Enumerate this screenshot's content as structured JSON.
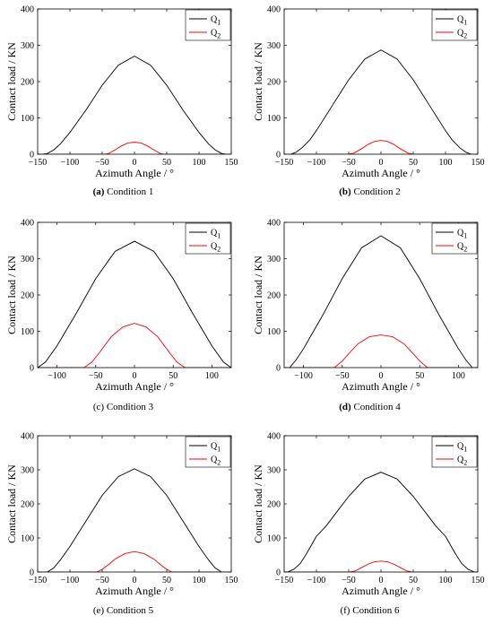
{
  "chart_data": [
    {
      "type": "line",
      "panel_letter": "(a)",
      "caption": "Condition 1",
      "xlabel": "Azimuth Angle / °",
      "ylabel": "Contact load / KN",
      "xlim": [
        -150,
        150
      ],
      "ylim": [
        0,
        400
      ],
      "xticks": [
        -150,
        -100,
        -50,
        0,
        50,
        100,
        150
      ],
      "yticks": [
        0,
        100,
        200,
        300,
        400
      ],
      "legend_position": "top-right",
      "series": [
        {
          "name": "Q1",
          "color": "#000000",
          "x": [
            -142,
            -135,
            -125,
            -115,
            -100,
            -75,
            -50,
            -25,
            0,
            25,
            50,
            75,
            100,
            115,
            125,
            135,
            142
          ],
          "y": [
            0,
            2,
            12,
            28,
            60,
            122,
            190,
            245,
            270,
            245,
            190,
            122,
            60,
            28,
            12,
            2,
            0
          ]
        },
        {
          "name": "Q2",
          "color": "#ff0000",
          "x": [
            -150,
            -45,
            -40,
            -30,
            -20,
            -10,
            0,
            10,
            20,
            30,
            40,
            45,
            150
          ],
          "y": [
            0,
            0,
            2,
            12,
            23,
            31,
            33,
            31,
            23,
            12,
            2,
            0,
            0
          ]
        }
      ]
    },
    {
      "type": "line",
      "panel_letter": "(b)",
      "caption": "Condition 2",
      "xlabel": "Azimuth Angle / °",
      "ylabel": "Contact load / KN",
      "xlim": [
        -150,
        150
      ],
      "ylim": [
        0,
        400
      ],
      "xticks": [
        -150,
        -100,
        -50,
        0,
        50,
        100,
        150
      ],
      "yticks": [
        0,
        100,
        200,
        300,
        400
      ],
      "legend_position": "top-right",
      "series": [
        {
          "name": "Q1",
          "color": "#000000",
          "x": [
            -140,
            -132,
            -122,
            -110,
            -100,
            -75,
            -50,
            -25,
            0,
            25,
            50,
            75,
            100,
            110,
            122,
            132,
            140
          ],
          "y": [
            0,
            5,
            18,
            40,
            65,
            135,
            205,
            262,
            287,
            262,
            205,
            135,
            65,
            40,
            18,
            5,
            0
          ]
        },
        {
          "name": "Q2",
          "color": "#ff0000",
          "x": [
            -150,
            -50,
            -42,
            -30,
            -20,
            -10,
            0,
            10,
            20,
            30,
            42,
            50,
            150
          ],
          "y": [
            0,
            0,
            3,
            15,
            27,
            35,
            38,
            35,
            27,
            15,
            3,
            0,
            0
          ]
        }
      ]
    },
    {
      "type": "line",
      "panel_letter": "(c)",
      "caption": "Condition 3",
      "xlabel": "Azimuth Angle / °",
      "ylabel": "Contact load / KN",
      "xlim": [
        -125,
        125
      ],
      "ylim": [
        0,
        400
      ],
      "xticks": [
        -100,
        -50,
        0,
        50,
        100
      ],
      "yticks": [
        0,
        100,
        200,
        300,
        400
      ],
      "legend_position": "top-right",
      "series": [
        {
          "name": "Q1",
          "color": "#000000",
          "x": [
            -125,
            -115,
            -100,
            -75,
            -50,
            -25,
            0,
            25,
            50,
            75,
            100,
            115,
            125
          ],
          "y": [
            0,
            15,
            60,
            150,
            245,
            320,
            348,
            320,
            245,
            150,
            60,
            15,
            0
          ]
        },
        {
          "name": "Q2",
          "color": "#ff0000",
          "x": [
            -125,
            -65,
            -55,
            -45,
            -30,
            -15,
            0,
            15,
            30,
            45,
            55,
            65,
            125
          ],
          "y": [
            0,
            0,
            15,
            42,
            85,
            112,
            122,
            112,
            85,
            42,
            15,
            0,
            0
          ]
        }
      ]
    },
    {
      "type": "line",
      "panel_letter": "(d)",
      "caption": "Condition 4",
      "xlabel": "Azimuth Angle / °",
      "ylabel": "Contact load / KN",
      "xlim": [
        -125,
        125
      ],
      "ylim": [
        0,
        400
      ],
      "xticks": [
        -100,
        -50,
        0,
        50,
        100
      ],
      "yticks": [
        0,
        100,
        200,
        300,
        400
      ],
      "legend_position": "top-right",
      "series": [
        {
          "name": "Q1",
          "color": "#000000",
          "x": [
            -118,
            -110,
            -100,
            -75,
            -50,
            -25,
            0,
            25,
            50,
            75,
            100,
            110,
            118
          ],
          "y": [
            0,
            20,
            52,
            145,
            245,
            330,
            363,
            330,
            245,
            145,
            52,
            20,
            0
          ]
        },
        {
          "name": "Q2",
          "color": "#ff0000",
          "x": [
            -125,
            -60,
            -50,
            -40,
            -30,
            -15,
            0,
            15,
            30,
            40,
            50,
            60,
            125
          ],
          "y": [
            0,
            0,
            18,
            42,
            65,
            85,
            90,
            85,
            65,
            42,
            18,
            0,
            0
          ]
        }
      ]
    },
    {
      "type": "line",
      "panel_letter": "(e)",
      "caption": "Condition 5",
      "xlabel": "Azimuth Angle / °",
      "ylabel": "Contact load / KN",
      "xlim": [
        -150,
        150
      ],
      "ylim": [
        0,
        400
      ],
      "xticks": [
        -150,
        -100,
        -50,
        0,
        50,
        100,
        150
      ],
      "yticks": [
        0,
        100,
        200,
        300,
        400
      ],
      "legend_position": "top-right",
      "series": [
        {
          "name": "Q1",
          "color": "#000000",
          "x": [
            -135,
            -125,
            -115,
            -100,
            -75,
            -50,
            -25,
            0,
            25,
            50,
            75,
            100,
            115,
            125,
            135
          ],
          "y": [
            0,
            12,
            35,
            75,
            150,
            225,
            280,
            303,
            280,
            225,
            150,
            75,
            35,
            12,
            0
          ]
        },
        {
          "name": "Q2",
          "color": "#ff0000",
          "x": [
            -150,
            -58,
            -50,
            -40,
            -30,
            -15,
            0,
            15,
            30,
            40,
            50,
            58,
            150
          ],
          "y": [
            0,
            0,
            8,
            22,
            38,
            54,
            60,
            54,
            38,
            22,
            8,
            0,
            0
          ]
        }
      ]
    },
    {
      "type": "line",
      "panel_letter": "(f)",
      "caption": "Condition 6",
      "xlabel": "Azimuth Angle / °",
      "ylabel": "Contact load / KN",
      "xlim": [
        -150,
        150
      ],
      "ylim": [
        0,
        400
      ],
      "xticks": [
        -150,
        -100,
        -50,
        0,
        50,
        100,
        150
      ],
      "yticks": [
        0,
        100,
        200,
        300,
        400
      ],
      "legend_position": "top-right",
      "series": [
        {
          "name": "Q1",
          "color": "#000000",
          "x": [
            -145,
            -135,
            -125,
            -115,
            -100,
            -95,
            -85,
            -75,
            -50,
            -25,
            0,
            25,
            50,
            75,
            85,
            95,
            100,
            115,
            125,
            135,
            145
          ],
          "y": [
            0,
            8,
            25,
            55,
            105,
            115,
            135,
            160,
            222,
            273,
            293,
            273,
            222,
            160,
            135,
            115,
            105,
            55,
            25,
            8,
            0
          ]
        },
        {
          "name": "Q2",
          "color": "#ff0000",
          "x": [
            -150,
            -48,
            -40,
            -30,
            -20,
            -10,
            0,
            10,
            20,
            30,
            40,
            48,
            150
          ],
          "y": [
            0,
            0,
            3,
            13,
            23,
            30,
            32,
            30,
            23,
            13,
            3,
            0,
            0
          ]
        }
      ]
    }
  ]
}
